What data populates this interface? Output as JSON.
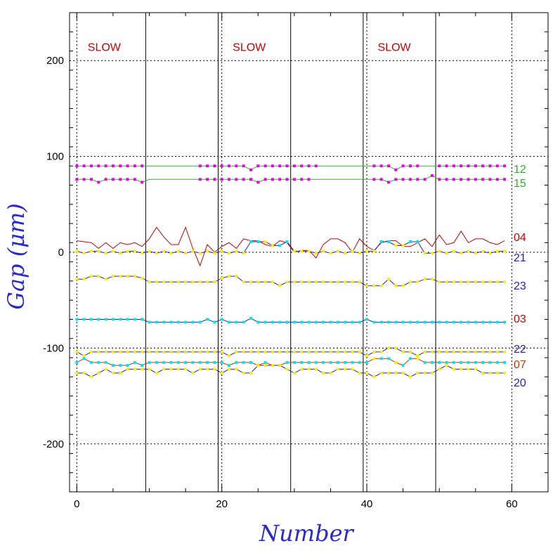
{
  "chart_data": {
    "type": "line",
    "title": "",
    "xlabel": "Number",
    "ylabel": "Gap (μm)",
    "xlim": [
      -1,
      65
    ],
    "ylim": [
      -250,
      250
    ],
    "xticks": [
      0,
      20,
      40,
      60
    ],
    "yticks": [
      -200,
      -100,
      0,
      100,
      200
    ],
    "xtick_labels": [
      "0",
      "20",
      "40",
      "60"
    ],
    "ytick_labels": [
      "-200",
      "-100",
      "0",
      "100",
      "200"
    ],
    "grid": true,
    "grid_x": [
      0,
      20,
      40,
      60
    ],
    "grid_y": [
      -200,
      -100,
      0,
      100,
      200
    ],
    "section_lines": [
      9.5,
      19.5,
      29.5,
      39.5,
      49.5
    ],
    "annotations": [
      {
        "text": "SLOW",
        "x": 1.5,
        "y": 210,
        "color": "#cc0000"
      },
      {
        "text": "SLOW",
        "x": 21.5,
        "y": 210,
        "color": "#cc0000"
      },
      {
        "text": "SLOW",
        "x": 41.5,
        "y": 210,
        "color": "#cc0000"
      }
    ],
    "series": [
      {
        "name": "12",
        "color": "#22bb22",
        "marker": "#ee00ee",
        "baseline": 90,
        "dips": [
          [
            24,
            86
          ],
          [
            44,
            86
          ]
        ],
        "gaps": [
          10,
          11,
          12,
          13,
          14,
          15,
          16,
          34,
          35,
          36,
          37,
          38,
          39,
          40,
          48,
          49
        ]
      },
      {
        "name": "15",
        "color": "#22bb22",
        "marker": "#ee00ee",
        "baseline": 76,
        "dips": [
          [
            3,
            73
          ],
          [
            9,
            73
          ],
          [
            25,
            73
          ],
          [
            43,
            73
          ],
          [
            49,
            80
          ]
        ],
        "gaps": [
          10,
          11,
          12,
          13,
          14,
          15,
          16,
          33,
          34,
          35,
          36,
          37,
          38,
          39,
          40
        ]
      },
      {
        "name": "04",
        "color": "#cc0000",
        "marker": null,
        "values": [
          12,
          11,
          10,
          4,
          10,
          4,
          10,
          8,
          10,
          6,
          14,
          26,
          16,
          8,
          8,
          26,
          4,
          -14,
          8,
          0,
          6,
          10,
          4,
          14,
          12,
          12,
          8,
          6,
          12,
          10,
          0,
          2,
          2,
          -6,
          8,
          14,
          14,
          10,
          0,
          14,
          6,
          2,
          10,
          12,
          12,
          6,
          6,
          10,
          14,
          6,
          18,
          8,
          10,
          22,
          10,
          14,
          14,
          10,
          8,
          12
        ]
      },
      {
        "name": "21",
        "color": "#2222cc",
        "marker": "#ffee00",
        "marker2": "#00e8e8",
        "values": [
          1,
          -1,
          1,
          1,
          -1,
          1,
          -1,
          1,
          1,
          -1,
          1,
          -1,
          1,
          -1,
          1,
          -1,
          1,
          -1,
          1,
          -1,
          1,
          -1,
          1,
          -1,
          11,
          11,
          11,
          7,
          7,
          11,
          1,
          1,
          1,
          -1,
          1,
          -1,
          1,
          -1,
          1,
          -1,
          1,
          1,
          11,
          11,
          7,
          7,
          11,
          11,
          -1,
          -1,
          1,
          -1,
          1,
          -1,
          1,
          -1,
          1,
          -1,
          1,
          1
        ],
        "cyan_points": [
          24,
          25,
          28,
          29,
          42,
          43,
          46,
          47
        ]
      },
      {
        "name": "23",
        "color": "#2222cc",
        "marker": "#ffee00",
        "values": [
          -28,
          -28,
          -25,
          -25,
          -28,
          -25,
          -25,
          -25,
          -25,
          -27,
          -31,
          -31,
          -31,
          -31,
          -31,
          -31,
          -31,
          -31,
          -31,
          -31,
          -27,
          -25,
          -25,
          -31,
          -31,
          -31,
          -31,
          -31,
          -35,
          -31,
          -31,
          -31,
          -31,
          -31,
          -31,
          -31,
          -31,
          -31,
          -31,
          -31,
          -35,
          -35,
          -35,
          -28,
          -35,
          -35,
          -31,
          -31,
          -28,
          -28,
          -31,
          -31,
          -31,
          -31,
          -31,
          -31,
          -31,
          -31,
          -31,
          -31
        ]
      },
      {
        "name": "03",
        "color": "#2222cc",
        "marker": "#00e8e8",
        "values": [
          -70,
          -70,
          -70,
          -70,
          -70,
          -70,
          -70,
          -70,
          -70,
          -70,
          -73,
          -73,
          -73,
          -73,
          -73,
          -73,
          -73,
          -73,
          -70,
          -73,
          -70,
          -73,
          -73,
          -73,
          -69,
          -73,
          -73,
          -73,
          -73,
          -73,
          -73,
          -73,
          -73,
          -73,
          -73,
          -73,
          -73,
          -73,
          -73,
          -73,
          -70,
          -73,
          -73,
          -73,
          -73,
          -73,
          -73,
          -73,
          -73,
          -73,
          -73,
          -73,
          -73,
          -73,
          -73,
          -73,
          -73,
          -73,
          -73,
          -73
        ]
      },
      {
        "name": "22",
        "color": "#2222cc",
        "marker": "#ffee00",
        "values": [
          -104,
          -108,
          -104,
          -104,
          -104,
          -104,
          -104,
          -104,
          -104,
          -104,
          -104,
          -104,
          -104,
          -104,
          -104,
          -104,
          -104,
          -104,
          -104,
          -104,
          -104,
          -108,
          -104,
          -104,
          -104,
          -104,
          -104,
          -104,
          -104,
          -104,
          -104,
          -104,
          -104,
          -104,
          -104,
          -104,
          -104,
          -104,
          -104,
          -104,
          -108,
          -104,
          -104,
          -100,
          -100,
          -104,
          -104,
          -108,
          -104,
          -104,
          -104,
          -104,
          -104,
          -104,
          -104,
          -104,
          -104,
          -104,
          -104,
          -104
        ]
      },
      {
        "name": "07",
        "color": "#cc3300",
        "marker": "#00e8e8",
        "marker2": "#ffee00",
        "values": [
          -115,
          -111,
          -115,
          -115,
          -115,
          -118,
          -118,
          -118,
          -115,
          -118,
          -115,
          -115,
          -115,
          -115,
          -115,
          -115,
          -115,
          -115,
          -115,
          -115,
          -115,
          -118,
          -115,
          -115,
          -115,
          -118,
          -115,
          -118,
          -118,
          -115,
          -115,
          -115,
          -115,
          -115,
          -115,
          -115,
          -115,
          -115,
          -115,
          -115,
          -115,
          -111,
          -111,
          -111,
          -115,
          -118,
          -111,
          -111,
          -115,
          -115,
          -115,
          -115,
          -115,
          -115,
          -115,
          -115,
          -115,
          -115,
          -115,
          -115
        ],
        "yellow_points": [
          41,
          44,
          47
        ]
      },
      {
        "name": "20",
        "color": "#2222cc",
        "marker": "#ffee00",
        "values": [
          -126,
          -126,
          -130,
          -126,
          -122,
          -126,
          -126,
          -122,
          -122,
          -122,
          -122,
          -126,
          -122,
          -122,
          -122,
          -122,
          -126,
          -122,
          -122,
          -122,
          -126,
          -122,
          -122,
          -126,
          -126,
          -118,
          -118,
          -118,
          -118,
          -122,
          -126,
          -122,
          -122,
          -122,
          -126,
          -126,
          -122,
          -122,
          -122,
          -126,
          -126,
          -130,
          -126,
          -126,
          -126,
          -126,
          -130,
          -126,
          -126,
          -126,
          -122,
          -118,
          -122,
          -122,
          -122,
          -122,
          -126,
          -126,
          -126,
          -126
        ]
      }
    ]
  },
  "series_labels": {
    "l12": "12",
    "l15": "15",
    "l04": "04",
    "l21": "21",
    "l23": "23",
    "l03": "03",
    "l22": "22",
    "l07": "07",
    "l20": "20"
  },
  "colors": {
    "axis_title": "#2a2ad0",
    "grid": "#000000"
  }
}
